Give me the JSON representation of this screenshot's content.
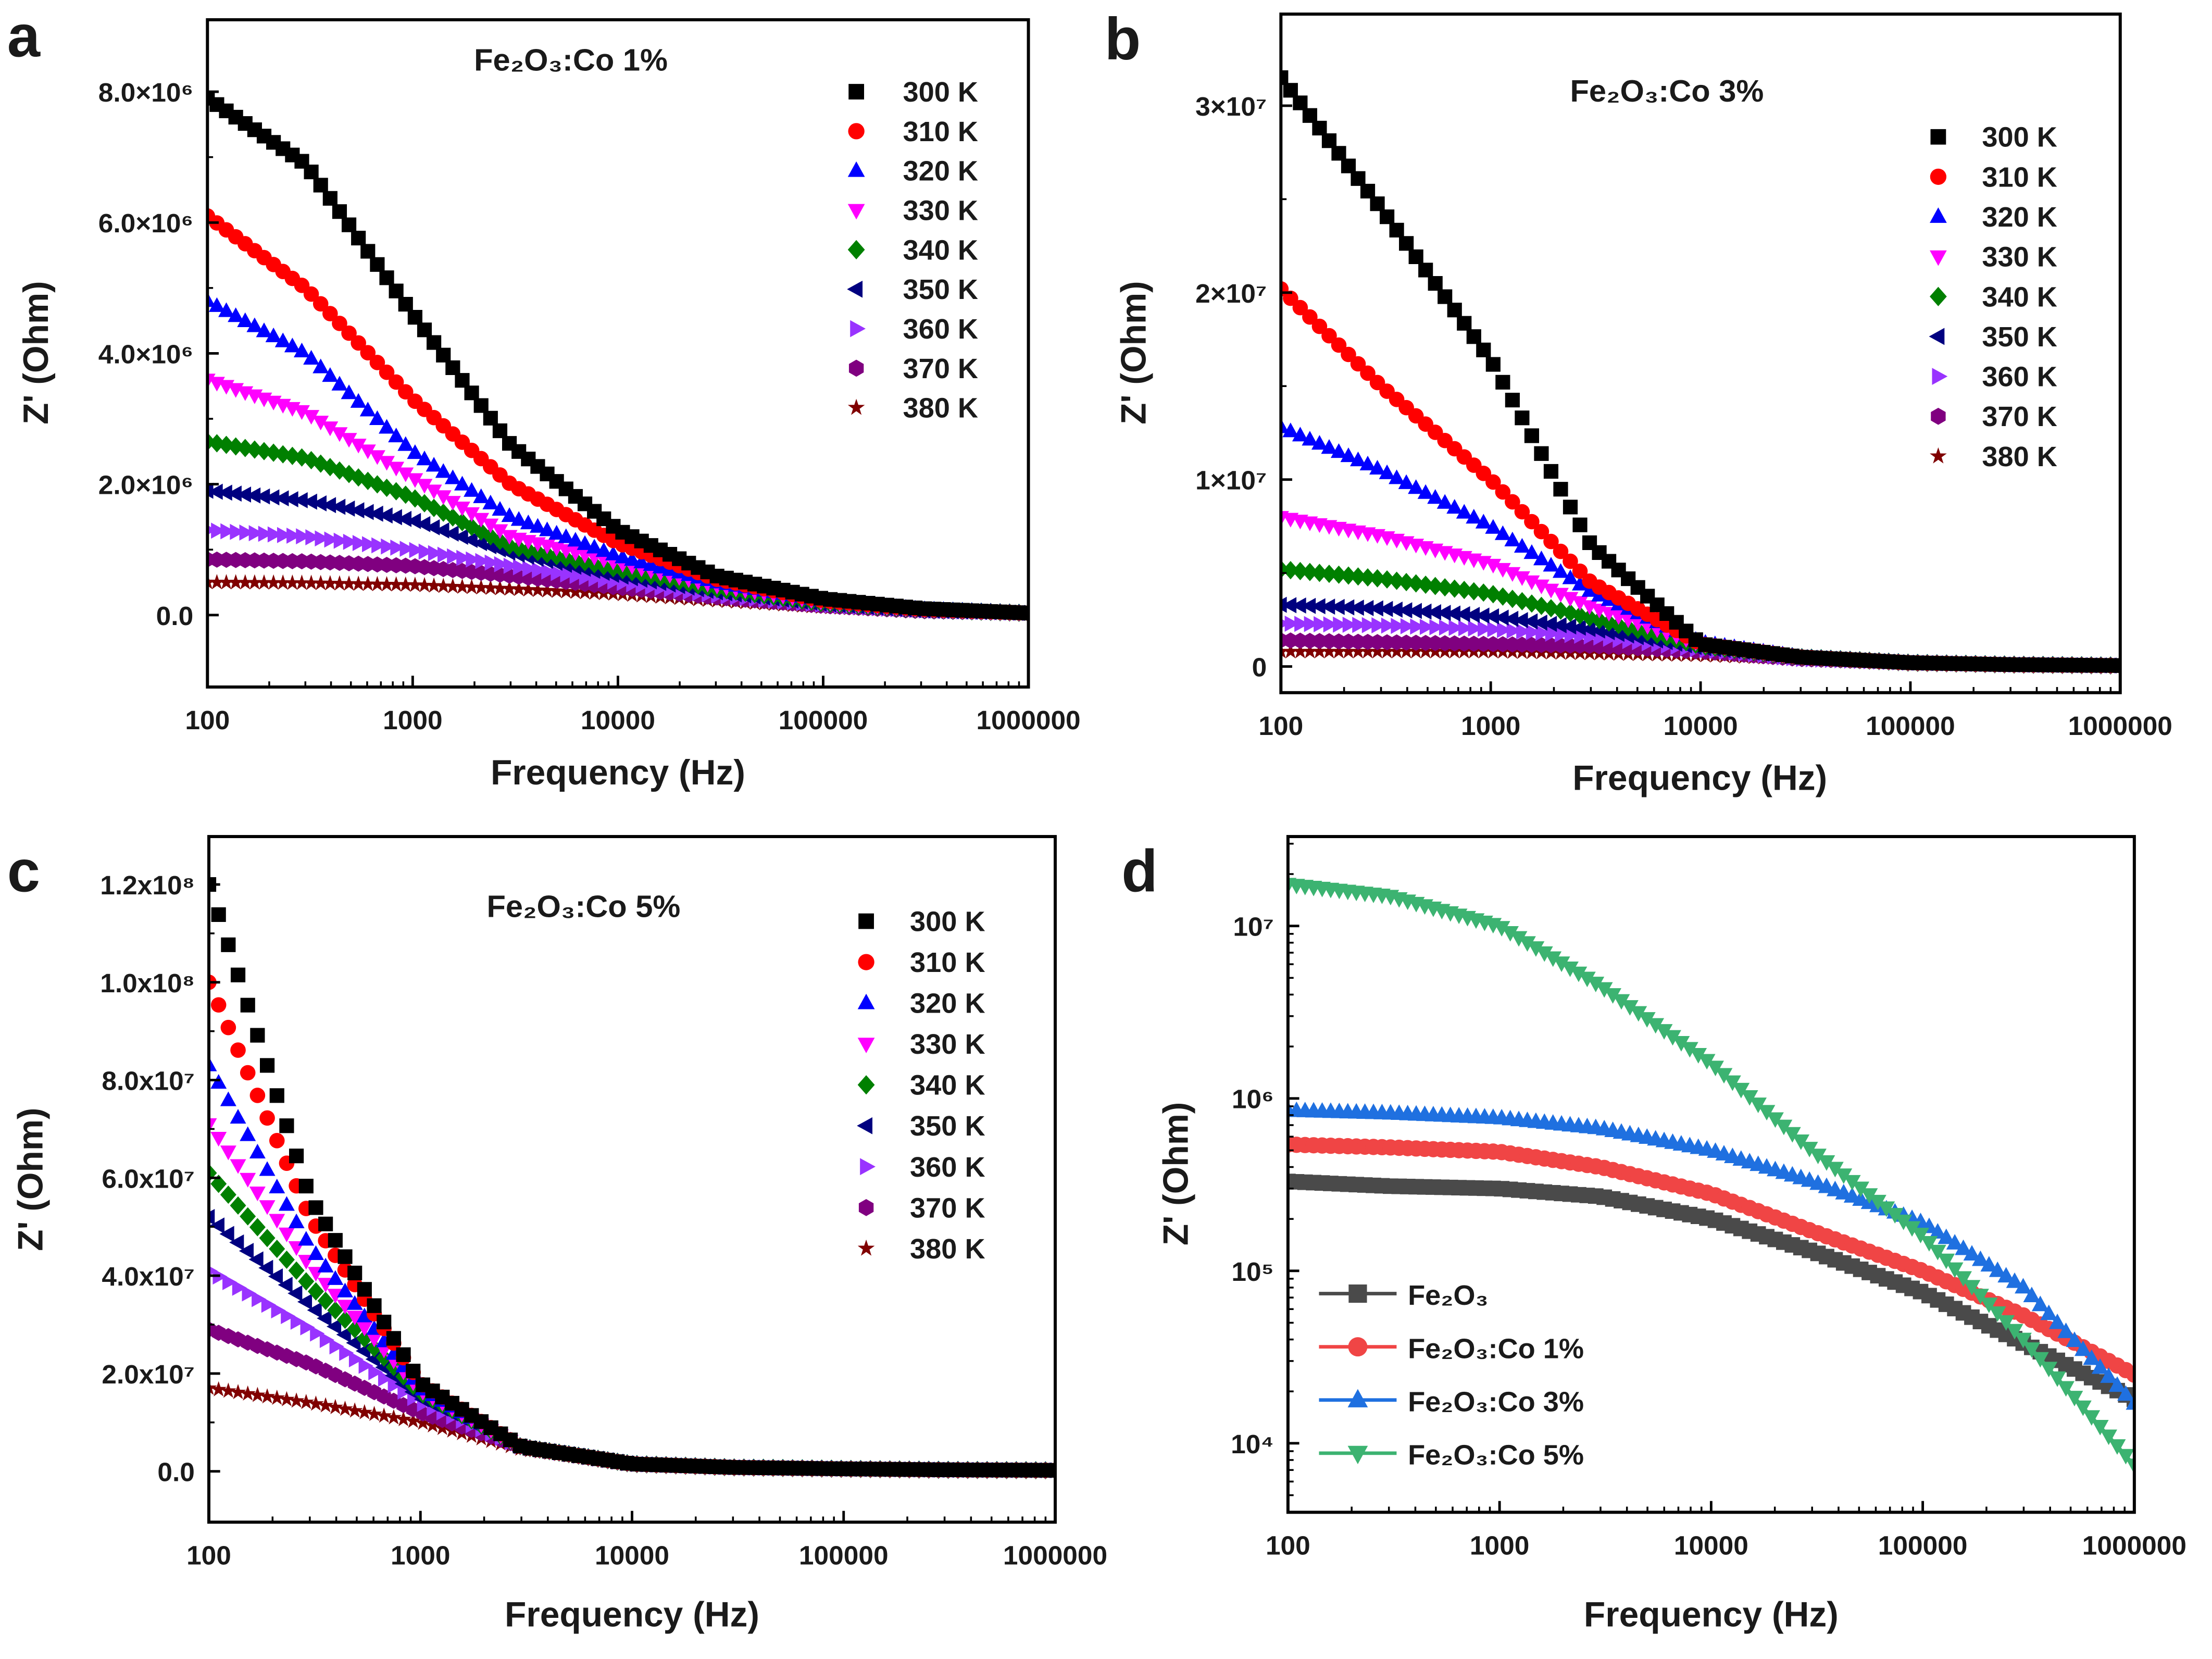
{
  "chart_data": [
    {
      "panel_label": "a",
      "type": "scatter",
      "title": "Fe₂O₃:Co 1%",
      "xlabel": "Frequency (Hz)",
      "ylabel": "Z' (Ohm)",
      "x_scale": "log",
      "y_scale": "linear",
      "xlim": [
        100,
        1000000
      ],
      "ylim": [
        -1100000,
        9100000
      ],
      "xticks": [
        100,
        1000,
        10000,
        100000,
        1000000
      ],
      "xtick_labels": [
        "100",
        "1000",
        "10000",
        "100000",
        "1000000"
      ],
      "yticks": [
        0,
        2000000,
        4000000,
        6000000,
        8000000
      ],
      "ytick_labels": [
        "0.0",
        "2.0×10⁶",
        "4.0×10⁶",
        "6.0×10⁶",
        "8.0×10⁶"
      ],
      "legend_position": "top-right",
      "x_anchor": [
        100,
        300,
        1000,
        3000,
        10000,
        30000,
        100000,
        300000,
        1000000
      ],
      "series": [
        {
          "name": "300 K",
          "color": "#000000",
          "marker": "square",
          "values": [
            7900000,
            6900000,
            4600000,
            2600000,
            1300000,
            600000,
            250000,
            100000,
            30000
          ]
        },
        {
          "name": "310 K",
          "color": "#ff0000",
          "marker": "circle",
          "values": [
            6100000,
            5000000,
            3300000,
            2000000,
            1100000,
            550000,
            220000,
            90000,
            30000
          ]
        },
        {
          "name": "320 K",
          "color": "#0000ff",
          "marker": "triangle-up",
          "values": [
            4800000,
            4000000,
            2500000,
            1500000,
            900000,
            500000,
            220000,
            90000,
            30000
          ]
        },
        {
          "name": "330 K",
          "color": "#ff00ff",
          "marker": "triangle-down",
          "values": [
            3600000,
            3100000,
            2100000,
            1200000,
            800000,
            450000,
            200000,
            80000,
            30000
          ]
        },
        {
          "name": "340 K",
          "color": "#008000",
          "marker": "diamond",
          "values": [
            2650000,
            2400000,
            1800000,
            1050000,
            700000,
            400000,
            180000,
            80000,
            30000
          ]
        },
        {
          "name": "350 K",
          "color": "#000080",
          "marker": "triangle-left",
          "values": [
            1900000,
            1750000,
            1450000,
            950000,
            600000,
            350000,
            170000,
            70000,
            30000
          ]
        },
        {
          "name": "360 K",
          "color": "#9933ff",
          "marker": "triangle-right",
          "values": [
            1300000,
            1200000,
            1000000,
            750000,
            500000,
            300000,
            150000,
            70000,
            30000
          ]
        },
        {
          "name": "370 K",
          "color": "#800080",
          "marker": "hexagon",
          "values": [
            850000,
            820000,
            750000,
            600000,
            420000,
            270000,
            140000,
            60000,
            30000
          ]
        },
        {
          "name": "380 K",
          "color": "#800000",
          "marker": "star",
          "values": [
            500000,
            490000,
            460000,
            400000,
            320000,
            220000,
            120000,
            60000,
            30000
          ]
        }
      ]
    },
    {
      "panel_label": "b",
      "type": "scatter",
      "title": "Fe₂O₃:Co 3%",
      "xlabel": "Frequency (Hz)",
      "ylabel": "Z' (Ohm)",
      "x_scale": "log",
      "y_scale": "linear",
      "xlim": [
        100,
        1000000
      ],
      "ylim": [
        -1400000,
        34900000
      ],
      "xticks": [
        100,
        1000,
        10000,
        100000,
        1000000
      ],
      "xtick_labels": [
        "100",
        "1000",
        "10000",
        "100000",
        "1000000"
      ],
      "yticks": [
        0,
        10000000,
        20000000,
        30000000
      ],
      "ytick_labels": [
        "0",
        "1×10⁷",
        "2×10⁷",
        "3×10⁷"
      ],
      "legend_position": "top-right",
      "x_anchor": [
        100,
        300,
        1000,
        3000,
        10000,
        30000,
        100000,
        300000,
        1000000
      ],
      "series": [
        {
          "name": "300 K",
          "color": "#000000",
          "marker": "square",
          "values": [
            31500000,
            24500000,
            16400000,
            6500000,
            1200000,
            500000,
            200000,
            100000,
            50000
          ]
        },
        {
          "name": "310 K",
          "color": "#ff0000",
          "marker": "circle",
          "values": [
            20200000,
            15000000,
            10000000,
            4500000,
            1200000,
            500000,
            200000,
            100000,
            50000
          ]
        },
        {
          "name": "320 K",
          "color": "#0000ff",
          "marker": "triangle-up",
          "values": [
            12800000,
            10500000,
            7500000,
            4000000,
            1300000,
            500000,
            200000,
            100000,
            50000
          ]
        },
        {
          "name": "330 K",
          "color": "#ff00ff",
          "marker": "triangle-down",
          "values": [
            8000000,
            7000000,
            5500000,
            3200000,
            1200000,
            500000,
            200000,
            100000,
            50000
          ]
        },
        {
          "name": "340 K",
          "color": "#008000",
          "marker": "diamond",
          "values": [
            5200000,
            4700000,
            3900000,
            2600000,
            1100000,
            500000,
            200000,
            100000,
            50000
          ]
        },
        {
          "name": "350 K",
          "color": "#000080",
          "marker": "triangle-left",
          "values": [
            3300000,
            3100000,
            2700000,
            2000000,
            1000000,
            500000,
            200000,
            100000,
            50000
          ]
        },
        {
          "name": "360 K",
          "color": "#9933ff",
          "marker": "triangle-right",
          "values": [
            2300000,
            2200000,
            2000000,
            1600000,
            900000,
            400000,
            200000,
            100000,
            50000
          ]
        },
        {
          "name": "370 K",
          "color": "#800080",
          "marker": "hexagon",
          "values": [
            1400000,
            1300000,
            1200000,
            1100000,
            800000,
            400000,
            200000,
            100000,
            50000
          ]
        },
        {
          "name": "380 K",
          "color": "#800000",
          "marker": "star",
          "values": [
            800000,
            800000,
            800000,
            700000,
            600000,
            400000,
            200000,
            100000,
            50000
          ]
        }
      ]
    },
    {
      "panel_label": "c",
      "type": "scatter",
      "title": "Fe₂O₃:Co 5%",
      "xlabel": "Frequency (Hz)",
      "ylabel": "Z' (Ohm)",
      "x_scale": "log",
      "y_scale": "linear",
      "xlim": [
        100,
        1000000
      ],
      "ylim": [
        -10400000,
        129800000
      ],
      "xticks": [
        100,
        1000,
        10000,
        100000,
        1000000
      ],
      "xtick_labels": [
        "100",
        "1000",
        "10000",
        "100000",
        "1000000"
      ],
      "yticks": [
        0,
        20000000,
        40000000,
        60000000,
        80000000,
        100000000,
        120000000
      ],
      "ytick_labels": [
        "0.0",
        "2.0x10⁷",
        "4.0x10⁷",
        "6.0x10⁷",
        "8.0x10⁷",
        "1.0x10⁸",
        "1.2x10⁸"
      ],
      "legend_position": "top-right",
      "x_anchor": [
        100,
        300,
        1000,
        3000,
        10000,
        30000,
        100000,
        300000,
        1000000
      ],
      "series": [
        {
          "name": "300 K",
          "color": "#000000",
          "marker": "square",
          "values": [
            120000000,
            56000000,
            18000000,
            5000000,
            1500000,
            800000,
            500000,
            300000,
            200000
          ]
        },
        {
          "name": "310 K",
          "color": "#ff0000",
          "marker": "circle",
          "values": [
            100000000,
            52000000,
            18000000,
            5000000,
            1500000,
            800000,
            500000,
            300000,
            200000
          ]
        },
        {
          "name": "320 K",
          "color": "#0000ff",
          "marker": "triangle-up",
          "values": [
            83000000,
            46000000,
            17000000,
            5000000,
            1500000,
            800000,
            500000,
            300000,
            200000
          ]
        },
        {
          "name": "330 K",
          "color": "#ff00ff",
          "marker": "triangle-down",
          "values": [
            71000000,
            42000000,
            16500000,
            5000000,
            1500000,
            800000,
            500000,
            300000,
            200000
          ]
        },
        {
          "name": "340 K",
          "color": "#008000",
          "marker": "diamond",
          "values": [
            61000000,
            38000000,
            16000000,
            5000000,
            1500000,
            800000,
            500000,
            300000,
            200000
          ]
        },
        {
          "name": "350 K",
          "color": "#000080",
          "marker": "triangle-left",
          "values": [
            52000000,
            34000000,
            15000000,
            5000000,
            1500000,
            800000,
            500000,
            300000,
            200000
          ]
        },
        {
          "name": "360 K",
          "color": "#9933ff",
          "marker": "triangle-right",
          "values": [
            41000000,
            29000000,
            14000000,
            5000000,
            1500000,
            800000,
            500000,
            300000,
            200000
          ]
        },
        {
          "name": "370 K",
          "color": "#800080",
          "marker": "hexagon",
          "values": [
            29000000,
            22000000,
            12000000,
            5000000,
            1500000,
            800000,
            500000,
            300000,
            200000
          ]
        },
        {
          "name": "380 K",
          "color": "#800000",
          "marker": "star",
          "values": [
            17000000,
            14000000,
            10000000,
            4500000,
            1500000,
            800000,
            500000,
            300000,
            200000
          ]
        }
      ]
    },
    {
      "panel_label": "d",
      "type": "line",
      "title": "",
      "xlabel": "Frequency (Hz)",
      "ylabel": "Z' (Ohm)",
      "x_scale": "log",
      "y_scale": "log",
      "xlim": [
        100,
        1000000
      ],
      "ylim": [
        3980,
        33000000
      ],
      "xticks": [
        100,
        1000,
        10000,
        100000,
        1000000
      ],
      "xtick_labels": [
        "100",
        "1000",
        "10000",
        "100000",
        "1000000"
      ],
      "yticks": [
        10000,
        100000,
        1000000,
        10000000
      ],
      "ytick_labels": [
        "10⁴",
        "10⁵",
        "10⁶",
        "10⁷"
      ],
      "legend_position": "bottom-left",
      "x_anchor": [
        100,
        300,
        1000,
        3000,
        10000,
        30000,
        100000,
        300000,
        1000000
      ],
      "series": [
        {
          "name": "Fe₂O₃",
          "color": "#4a4a4a",
          "marker": "square",
          "values": [
            330000,
            310000,
            300000,
            270000,
            200000,
            130000,
            75000,
            38000,
            18000
          ]
        },
        {
          "name": "Fe₂O₃:Co 1%",
          "color": "#f04545",
          "marker": "circle",
          "values": [
            540000,
            520000,
            490000,
            400000,
            280000,
            170000,
            100000,
            55000,
            25000
          ]
        },
        {
          "name": "Fe₂O₃:Co 3%",
          "color": "#1f70e0",
          "marker": "triangle-up",
          "values": [
            850000,
            820000,
            770000,
            670000,
            500000,
            330000,
            190000,
            80000,
            17000
          ]
        },
        {
          "name": "Fe₂O₃:Co 5%",
          "color": "#3cb371",
          "marker": "triangle-down",
          "values": [
            17500000,
            15000000,
            10000000,
            4500000,
            1600000,
            500000,
            160000,
            40000,
            7500
          ]
        }
      ]
    }
  ]
}
